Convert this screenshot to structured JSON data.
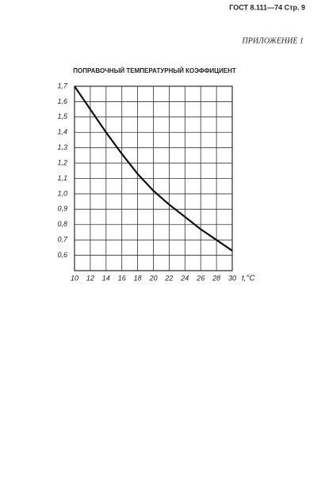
{
  "header": {
    "code": "ГОСТ 8.111—74 Стр. 9",
    "appendix": "ПРИЛОЖЕНИЕ 1"
  },
  "chart_data": {
    "type": "line",
    "title": "ПОПРАВОЧНЫЙ ТЕМПЕРАТУРНЫЙ КОЭФФИЦИЕНТ",
    "x_label": "t,°C",
    "x": [
      10,
      12,
      14,
      16,
      18,
      20,
      22,
      24,
      26,
      28,
      30
    ],
    "series": [
      {
        "color": "#111111",
        "values": [
          1.7,
          1.55,
          1.4,
          1.26,
          1.13,
          1.02,
          0.93,
          0.85,
          0.77,
          0.7,
          0.63
        ]
      }
    ],
    "xlim": [
      10,
      30
    ],
    "xticks": [
      10,
      12,
      14,
      16,
      18,
      20,
      22,
      24,
      26,
      28,
      30
    ],
    "ylim": [
      0.5,
      1.7
    ],
    "yticks": [
      {
        "value": 0.6,
        "label": "0,6"
      },
      {
        "value": 0.7,
        "label": "0,7"
      },
      {
        "value": 0.8,
        "label": "0,8"
      },
      {
        "value": 0.9,
        "label": "0,9"
      },
      {
        "value": 1.0,
        "label": "1,0"
      },
      {
        "value": 1.1,
        "label": "1,1"
      },
      {
        "value": 1.2,
        "label": "1,2"
      },
      {
        "value": 1.3,
        "label": "1,3"
      },
      {
        "value": 1.4,
        "label": "1,4"
      },
      {
        "value": 1.5,
        "label": "1,5"
      },
      {
        "value": 1.6,
        "label": "1,6"
      },
      {
        "value": 1.7,
        "label": "1,7"
      }
    ],
    "grid": true
  }
}
